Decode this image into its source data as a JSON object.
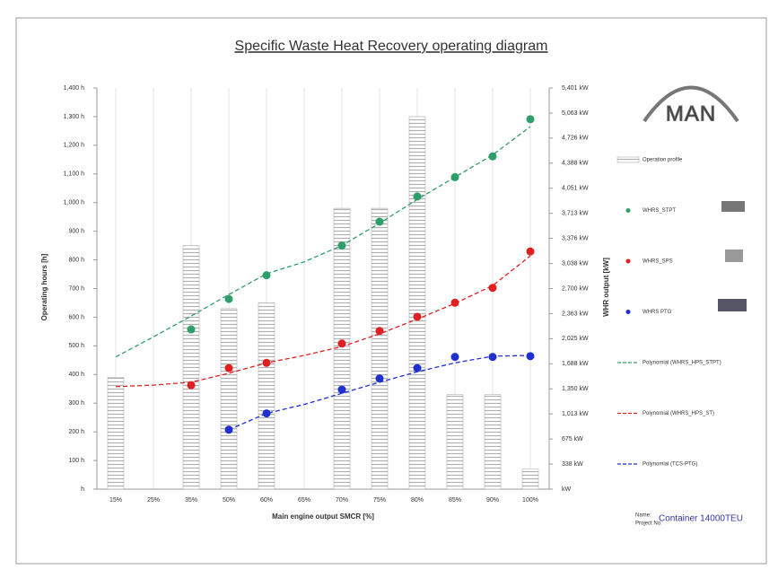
{
  "chart_data": {
    "type": "bar",
    "title": "Specific Waste Heat Recovery operating diagram",
    "x_label": "Main engine output SMCR [%]",
    "y_label": "Operating hours [h]",
    "y2_label": "WHR output [kW]",
    "categories": [
      "15%",
      "25%",
      "35%",
      "50%",
      "60%",
      "65%",
      "70%",
      "75%",
      "80%",
      "85%",
      "90%",
      "100%"
    ],
    "series": [
      {
        "name": "Operation profile",
        "type": "bar",
        "color": "#b0b0b0",
        "values": [
          390,
          0,
          850,
          630,
          650,
          0,
          980,
          980,
          1300,
          330,
          330,
          70
        ]
      },
      {
        "name": "WHRS_STPT",
        "type": "scatter",
        "axis": "y2",
        "color": "#2e9e6a",
        "values": [
          null,
          null,
          2150,
          2560,
          2880,
          null,
          3280,
          3600,
          3940,
          4200,
          4480,
          4980
        ]
      },
      {
        "name": "WHRS_SPS",
        "type": "scatter",
        "axis": "y2",
        "color": "#e02020",
        "values": [
          null,
          null,
          1400,
          1630,
          1700,
          null,
          1960,
          2130,
          2320,
          2510,
          2710,
          3200
        ]
      },
      {
        "name": "WHRS PTG",
        "type": "scatter",
        "axis": "y2",
        "color": "#1f2fd0",
        "values": [
          null,
          null,
          null,
          800,
          1020,
          null,
          1340,
          1490,
          1630,
          1780,
          1780,
          1790
        ]
      },
      {
        "name": "Polynomial (WHRS_HPS_STPT)",
        "type": "line",
        "axis": "y2",
        "color": "#2e9e6a",
        "values": [
          1780,
          2050,
          2330,
          2620,
          2900,
          3060,
          3280,
          3580,
          3900,
          4200,
          4500,
          4880
        ]
      },
      {
        "name": "Polynomial (WHRS_HPS_ST)",
        "type": "line",
        "axis": "y2",
        "color": "#e02020",
        "values": [
          1380,
          1400,
          1440,
          1560,
          1700,
          1800,
          1920,
          2090,
          2290,
          2500,
          2740,
          3140
        ]
      },
      {
        "name": "Polynomial (TCS-PTG)",
        "type": "line",
        "axis": "y2",
        "color": "#1f2fd0",
        "values": [
          null,
          null,
          null,
          800,
          1020,
          1140,
          1290,
          1440,
          1580,
          1700,
          1790,
          1800
        ]
      }
    ],
    "ylim": [
      0,
      1400
    ],
    "yticks": [
      {
        "value": 0,
        "label": "h"
      },
      {
        "value": 100,
        "label": "100 h"
      },
      {
        "value": 200,
        "label": "200 h"
      },
      {
        "value": 300,
        "label": "300 h"
      },
      {
        "value": 400,
        "label": "400 h"
      },
      {
        "value": 500,
        "label": "500 h"
      },
      {
        "value": 600,
        "label": "600 h"
      },
      {
        "value": 700,
        "label": "700 h"
      },
      {
        "value": 800,
        "label": "800 h"
      },
      {
        "value": 900,
        "label": "900 h"
      },
      {
        "value": 1000,
        "label": "1,000 h"
      },
      {
        "value": 1100,
        "label": "1,100 h"
      },
      {
        "value": 1200,
        "label": "1,200 h"
      },
      {
        "value": 1300,
        "label": "1,300 h"
      },
      {
        "value": 1400,
        "label": "1,400 h"
      }
    ],
    "y2lim": [
      0,
      5401
    ],
    "y2ticks": [
      {
        "value": 0,
        "label": "kW"
      },
      {
        "value": 338,
        "label": "338 kW"
      },
      {
        "value": 675,
        "label": "675 kW"
      },
      {
        "value": 1013,
        "label": "1,013 kW"
      },
      {
        "value": 1350,
        "label": "1,350 kW"
      },
      {
        "value": 1688,
        "label": "1,688 kW"
      },
      {
        "value": 2025,
        "label": "2,025 kW"
      },
      {
        "value": 2363,
        "label": "2,363 kW"
      },
      {
        "value": 2700,
        "label": "2,700 kW"
      },
      {
        "value": 3038,
        "label": "3,038 kW"
      },
      {
        "value": 3376,
        "label": "3,376 kW"
      },
      {
        "value": 3713,
        "label": "3,713 kW"
      },
      {
        "value": 4051,
        "label": "4,051 kW"
      },
      {
        "value": 4388,
        "label": "4,388 kW"
      },
      {
        "value": 4726,
        "label": "4,726 kW"
      },
      {
        "value": 5063,
        "label": "5,063 kW"
      },
      {
        "value": 5401,
        "label": "5,401 kW"
      }
    ],
    "grid": true,
    "legend": "right"
  },
  "logo": "MAN",
  "footer": {
    "name_label": "Name:",
    "name": "Container 14000TEU",
    "project_label": "Project No."
  }
}
